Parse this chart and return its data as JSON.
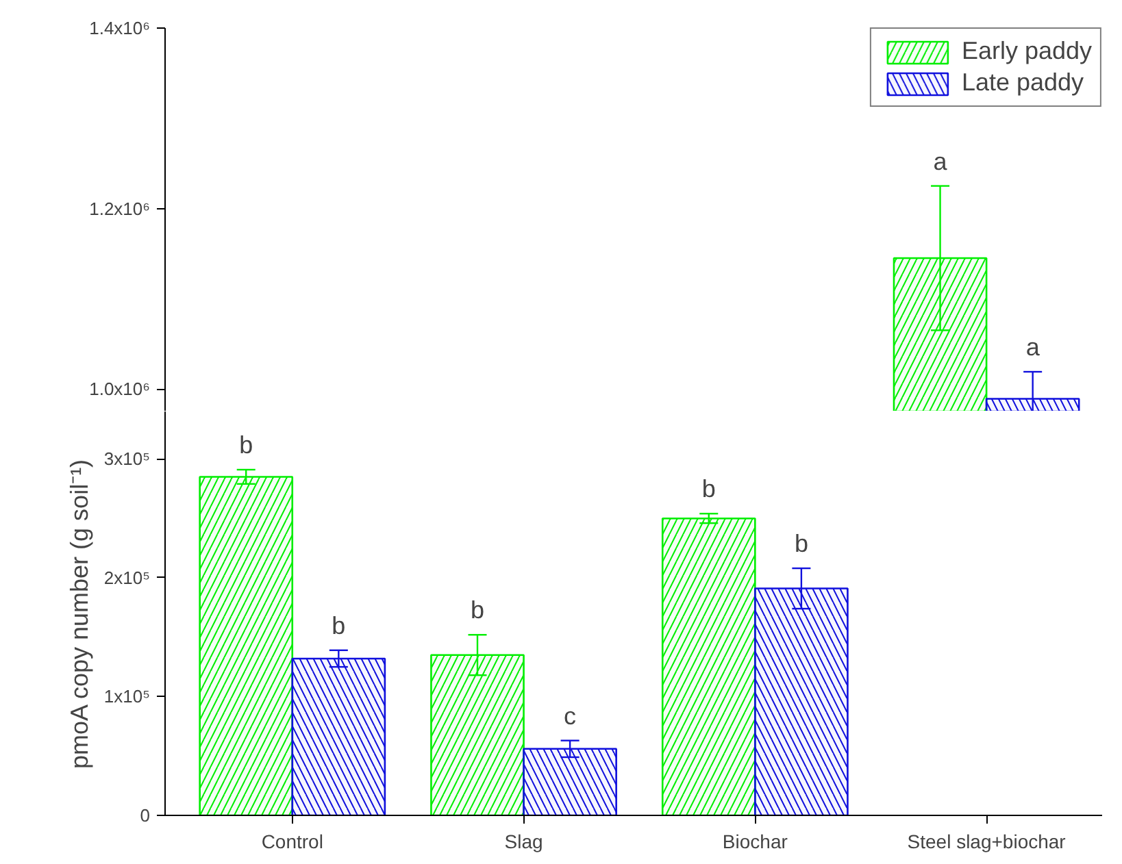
{
  "chart_data": [
    {
      "type": "bar",
      "categories": [
        "Control",
        "Slag",
        "Biochar",
        "Steel slag+biochar"
      ],
      "ylim": [
        975000,
        1400000
      ],
      "yticks": [
        {
          "value": 1000000,
          "label": "1.0x10⁶"
        },
        {
          "value": 1200000,
          "label": "1.2x10⁶"
        },
        {
          "value": 1400000,
          "label": "1.4x10⁶"
        }
      ],
      "tick_labels": "y",
      "legend": "top right",
      "series": [
        {
          "name": "Early paddy",
          "color": "#00ee00",
          "values": [
            null,
            null,
            null,
            1145000
          ],
          "errors": [
            null,
            null,
            null,
            80000
          ]
        },
        {
          "name": "Late paddy",
          "color": "#1010dd",
          "values": [
            null,
            null,
            null,
            989000
          ],
          "errors": [
            null,
            null,
            null,
            30000
          ]
        }
      ],
      "annotations": [
        "a",
        "a"
      ]
    },
    {
      "type": "bar",
      "categories": [
        "Control",
        "Slag",
        "Biochar",
        "Steel slag+biochar"
      ],
      "ylim": [
        0,
        340000
      ],
      "yticks": [
        0,
        {
          "value": 100000,
          "label": "1x10⁵"
        },
        {
          "value": 200000,
          "label": "2x10⁵"
        },
        {
          "value": 300000,
          "label": "3x10⁵"
        }
      ],
      "ylabel": "pmoA copy number (g soil⁻¹)",
      "series": [
        {
          "color": "#00ee00",
          "values": [
            285000,
            135000,
            250000,
            null
          ],
          "errors": [
            6000,
            17000,
            4000,
            null
          ]
        },
        {
          "color": "#1010dd",
          "values": [
            132000,
            56000,
            191000,
            null
          ],
          "errors": [
            7000,
            7000,
            17000,
            null
          ]
        }
      ],
      "annotations": [
        "b",
        "b",
        "b",
        "c",
        "b",
        "b"
      ]
    }
  ]
}
